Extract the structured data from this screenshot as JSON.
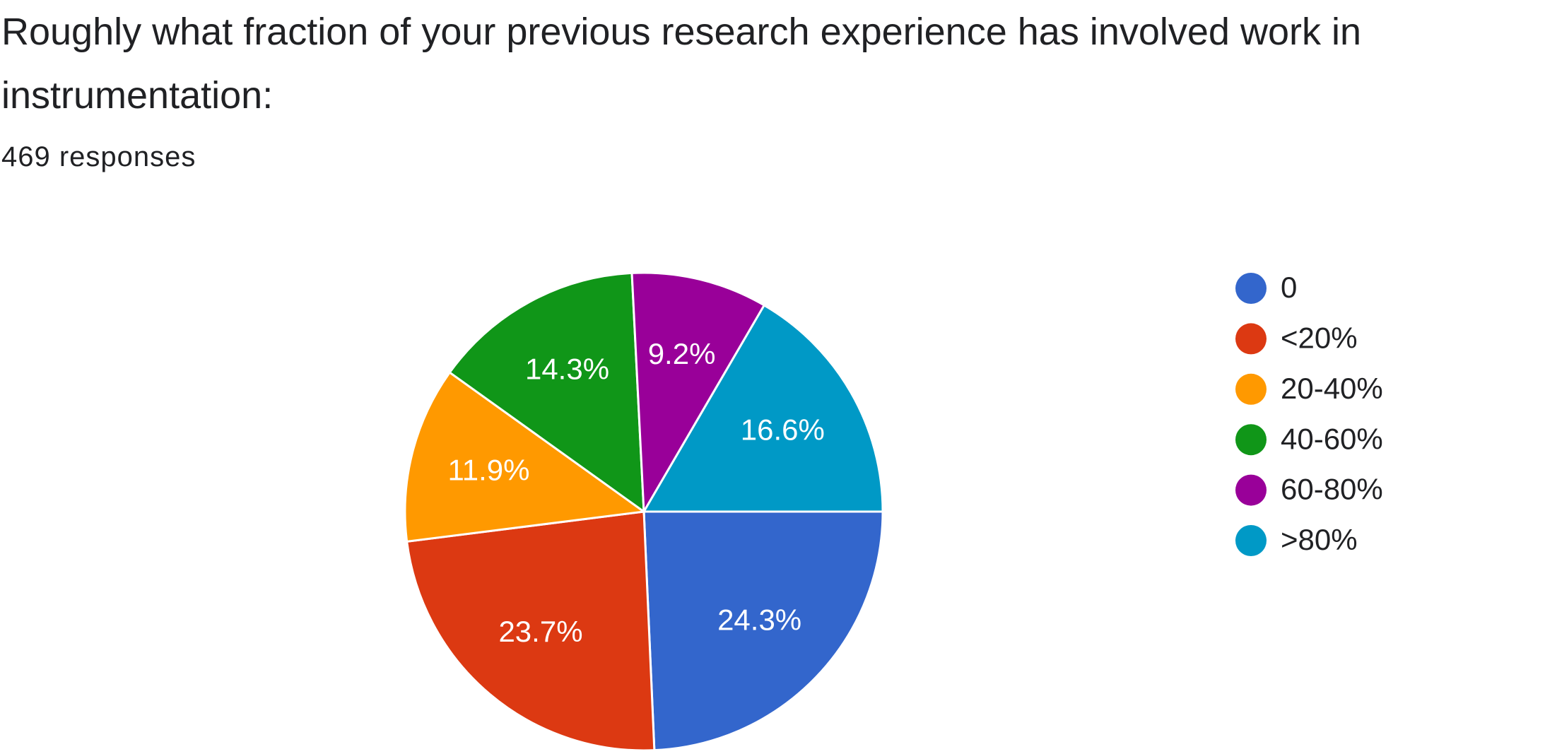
{
  "chart_data": {
    "type": "pie",
    "title": "Roughly what fraction of your previous research experience has involved work in instrumentation:",
    "subtitle": "469 responses",
    "categories": [
      "0",
      "<20%",
      "20-40%",
      "40-60%",
      "60-80%",
      ">80%"
    ],
    "values": [
      24.3,
      23.7,
      11.9,
      14.3,
      9.2,
      16.6
    ],
    "value_labels": [
      "24.3%",
      "23.7%",
      "11.9%",
      "14.3%",
      "9.2%",
      "16.6%"
    ],
    "colors": [
      "#3366cc",
      "#dc3912",
      "#ff9900",
      "#109618",
      "#990099",
      "#0099c6"
    ],
    "legend": "right"
  }
}
